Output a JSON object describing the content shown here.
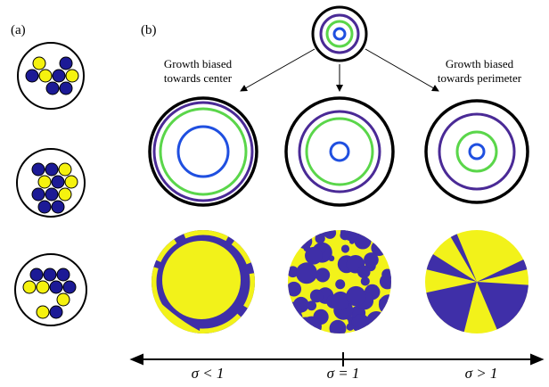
{
  "panel_labels": [
    "(a)",
    "(b)"
  ],
  "growth_labels": [
    {
      "lines": [
        "Growth biased",
        "towards center"
      ]
    },
    {
      "lines": [
        "Growth biased",
        "towards perimeter"
      ]
    }
  ],
  "axis_labels": [
    "σ < 1",
    "σ = 1",
    "σ > 1"
  ]
}
